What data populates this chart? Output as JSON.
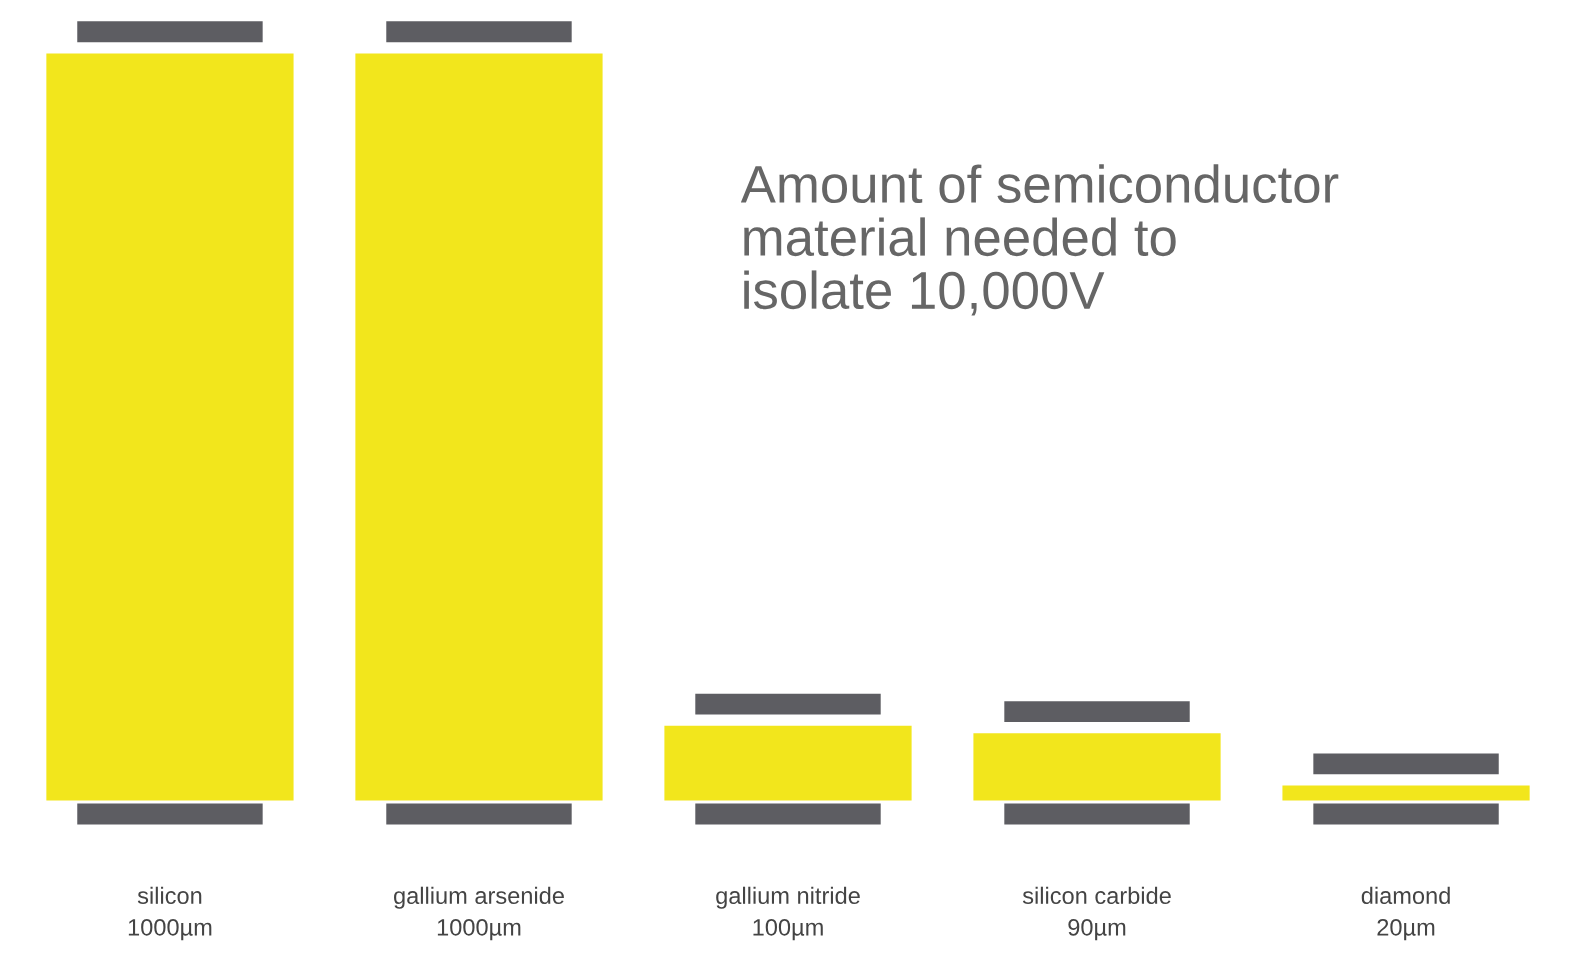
{
  "chart_data": {
    "type": "bar",
    "title": "Amount of semiconductor\nmaterial needed to\nisolate 10,000V",
    "categories": [
      "silicon",
      "gallium arsenide",
      "gallium nitride",
      "silicon carbide",
      "diamond"
    ],
    "values": [
      1000,
      1000,
      100,
      90,
      20
    ],
    "value_labels": [
      "1000µm",
      "1000µm",
      "100µm",
      "90µm",
      "20µm"
    ],
    "color": "#f2e61c",
    "grid": false,
    "legend": false
  }
}
